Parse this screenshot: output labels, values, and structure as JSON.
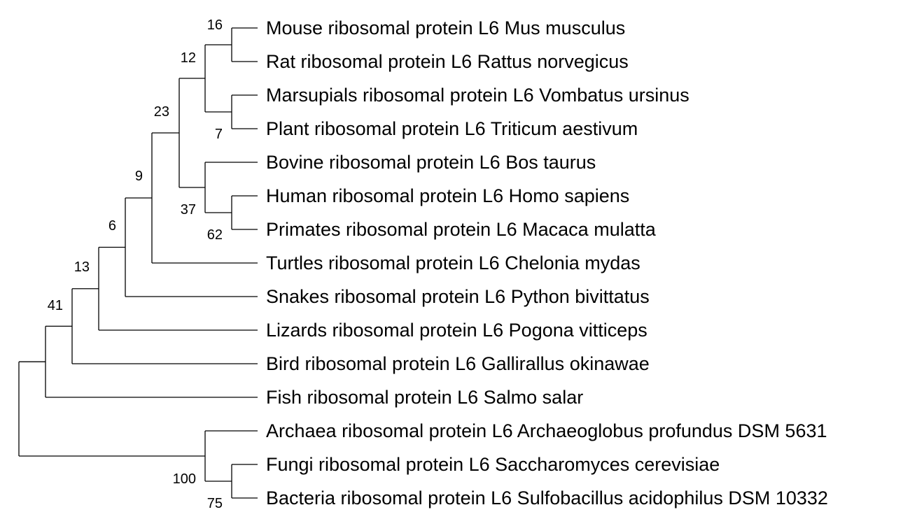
{
  "tree": {
    "line_color": "#000000",
    "leaves": [
      "Mouse ribosomal protein L6 Mus musculus",
      "Rat ribosomal protein L6 Rattus norvegicus",
      "Marsupials ribosomal protein L6 Vombatus ursinus",
      "Plant ribosomal protein L6 Triticum aestivum",
      "Bovine ribosomal protein L6 Bos taurus",
      "Human ribosomal protein L6 Homo sapiens",
      "Primates ribosomal protein L6 Macaca mulatta",
      "Turtles ribosomal protein L6 Chelonia mydas",
      "Snakes ribosomal protein L6 Python bivittatus",
      "Lizards ribosomal protein L6 Pogona vitticeps",
      "Bird ribosomal protein L6 Gallirallus okinawae",
      "Fish ribosomal protein L6 Salmo salar",
      "Archaea ribosomal protein L6 Archaeoglobus profundus DSM 5631",
      "Fungi ribosomal protein L6 Saccharomyces cerevisiae",
      "Bacteria ribosomal protein L6 Sulfobacillus acidophilus DSM 10332"
    ],
    "bootstrap": {
      "mouse_rat": "16",
      "marsupial_plant": "7",
      "rodent_plant_clade": "12",
      "human_primate": "62",
      "bovine_human_primate": "37",
      "mammal_clade": "23",
      "with_turtle": "9",
      "with_snake": "6",
      "with_lizard": "13",
      "with_bird": "41",
      "fungi_bacteria": "75",
      "outgroup_clade": "100"
    }
  }
}
